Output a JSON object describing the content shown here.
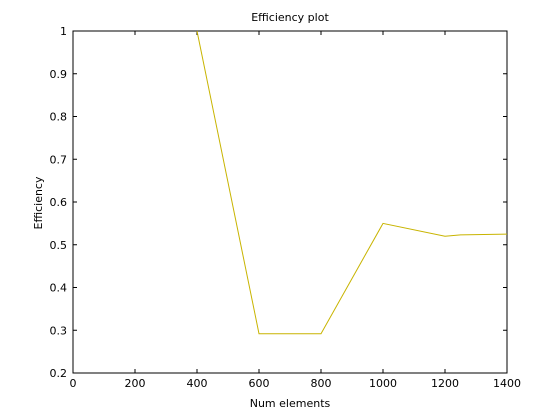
{
  "chart_data": {
    "type": "line",
    "title": "Efficiency plot",
    "xlabel": "Num elements",
    "ylabel": "Efficiency",
    "xlim": [
      0,
      1400
    ],
    "ylim": [
      0.2,
      1
    ],
    "xticks": [
      0,
      200,
      400,
      600,
      800,
      1000,
      1200,
      1400
    ],
    "yticks": [
      0.2,
      0.3,
      0.4,
      0.5,
      0.6,
      0.7,
      0.8,
      0.9,
      1
    ],
    "ytick_labels": [
      "0.2",
      "0.3",
      "0.4",
      "0.5",
      "0.6",
      "0.7",
      "0.8",
      "0.9",
      "1"
    ],
    "grid": false,
    "series": [
      {
        "color": "#c8b400",
        "x": [
          400,
          600,
          800,
          1000,
          1200,
          1250,
          1400
        ],
        "y": [
          1.0,
          0.292,
          0.292,
          0.55,
          0.52,
          0.523,
          0.525
        ]
      }
    ]
  }
}
